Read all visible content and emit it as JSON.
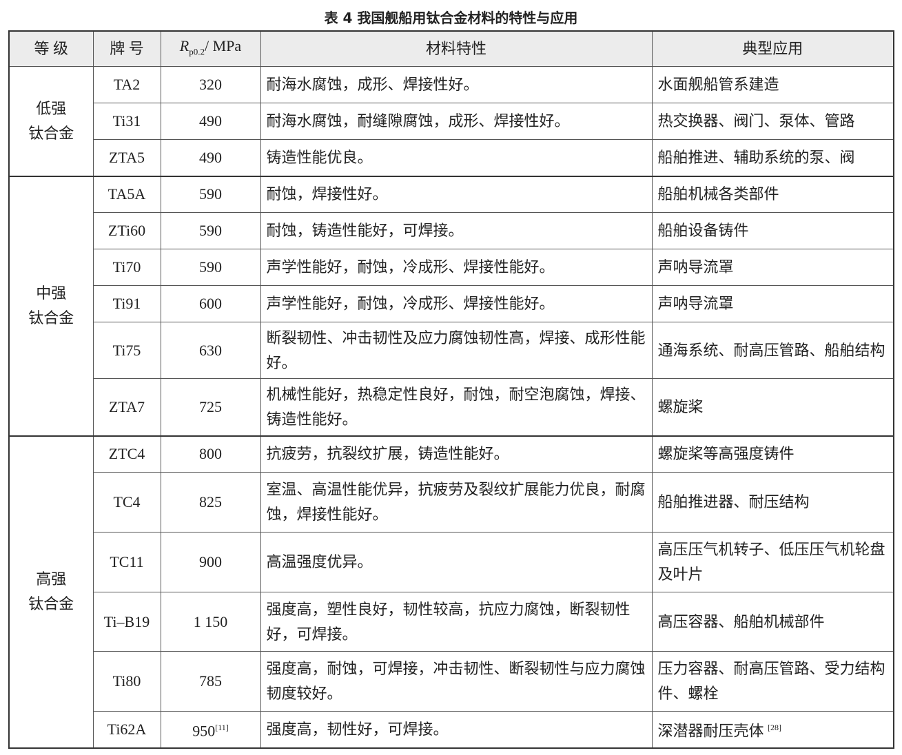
{
  "caption": "表 4  我国舰船用钛合金材料的特性与应用",
  "headers": {
    "grade": "等 级",
    "brand": "牌 号",
    "rp_symbol": "R",
    "rp_sub": "p0.2",
    "rp_unit": "/ MPa",
    "property": "材料特性",
    "application": "典型应用"
  },
  "groups": [
    {
      "name": "低强\n钛合金",
      "rows": [
        {
          "brand": "TA2",
          "rp": "320",
          "property": "耐海水腐蚀，成形、焊接性好。",
          "application": "水面舰船管系建造"
        },
        {
          "brand": "Ti31",
          "rp": "490",
          "property": "耐海水腐蚀，耐缝隙腐蚀，成形、焊接性好。",
          "application": "热交换器、阀门、泵体、管路"
        },
        {
          "brand": "ZTA5",
          "rp": "490",
          "property": "铸造性能优良。",
          "application": "船舶推进、辅助系统的泵、阀"
        }
      ]
    },
    {
      "name": "中强\n钛合金",
      "rows": [
        {
          "brand": "TA5A",
          "rp": "590",
          "property": "耐蚀，焊接性好。",
          "application": "船舶机械各类部件"
        },
        {
          "brand": "ZTi60",
          "rp": "590",
          "property": "耐蚀，铸造性能好，可焊接。",
          "application": "船舶设备铸件"
        },
        {
          "brand": "Ti70",
          "rp": "590",
          "property": "声学性能好，耐蚀，冷成形、焊接性能好。",
          "application": "声呐导流罩"
        },
        {
          "brand": "Ti91",
          "rp": "600",
          "property": "声学性能好，耐蚀，冷成形、焊接性能好。",
          "application": "声呐导流罩"
        },
        {
          "brand": "Ti75",
          "rp": "630",
          "property": "断裂韧性、冲击韧性及应力腐蚀韧性高，焊接、成形性能好。",
          "application": "通海系统、耐高压管路、船舶结构"
        },
        {
          "brand": "ZTA7",
          "rp": "725",
          "property": "机械性能好，热稳定性良好，耐蚀，耐空泡腐蚀，焊接、铸造性能好。",
          "application": "螺旋桨"
        }
      ]
    },
    {
      "name": "高强\n钛合金",
      "rows": [
        {
          "brand": "ZTC4",
          "rp": "800",
          "property": "抗疲劳，抗裂纹扩展，铸造性能好。",
          "application": "螺旋桨等高强度铸件"
        },
        {
          "brand": "TC4",
          "rp": "825",
          "property": "室温、高温性能优异，抗疲劳及裂纹扩展能力优良，耐腐蚀，焊接性能好。",
          "application": "船舶推进器、耐压结构"
        },
        {
          "brand": "TC11",
          "rp": "900",
          "property": "高温强度优异。",
          "application": "高压压气机转子、低压压气机轮盘及叶片"
        },
        {
          "brand": "Ti–B19",
          "rp": "1 150",
          "property": "强度高，塑性良好，韧性较高，抗应力腐蚀，断裂韧性好，可焊接。",
          "application": "高压容器、船舶机械部件"
        },
        {
          "brand": "Ti80",
          "rp": "785",
          "property": "强度高，耐蚀，可焊接，冲击韧性、断裂韧性与应力腐蚀韧度较好。",
          "application": "压力容器、耐高压管路、受力结构件、螺栓"
        },
        {
          "brand": "Ti62A",
          "rp": "950",
          "rp_ref": "[11]",
          "property": "强度高，韧性好，可焊接。",
          "application": "深潜器耐压壳体",
          "app_ref": "[28]"
        }
      ]
    }
  ]
}
